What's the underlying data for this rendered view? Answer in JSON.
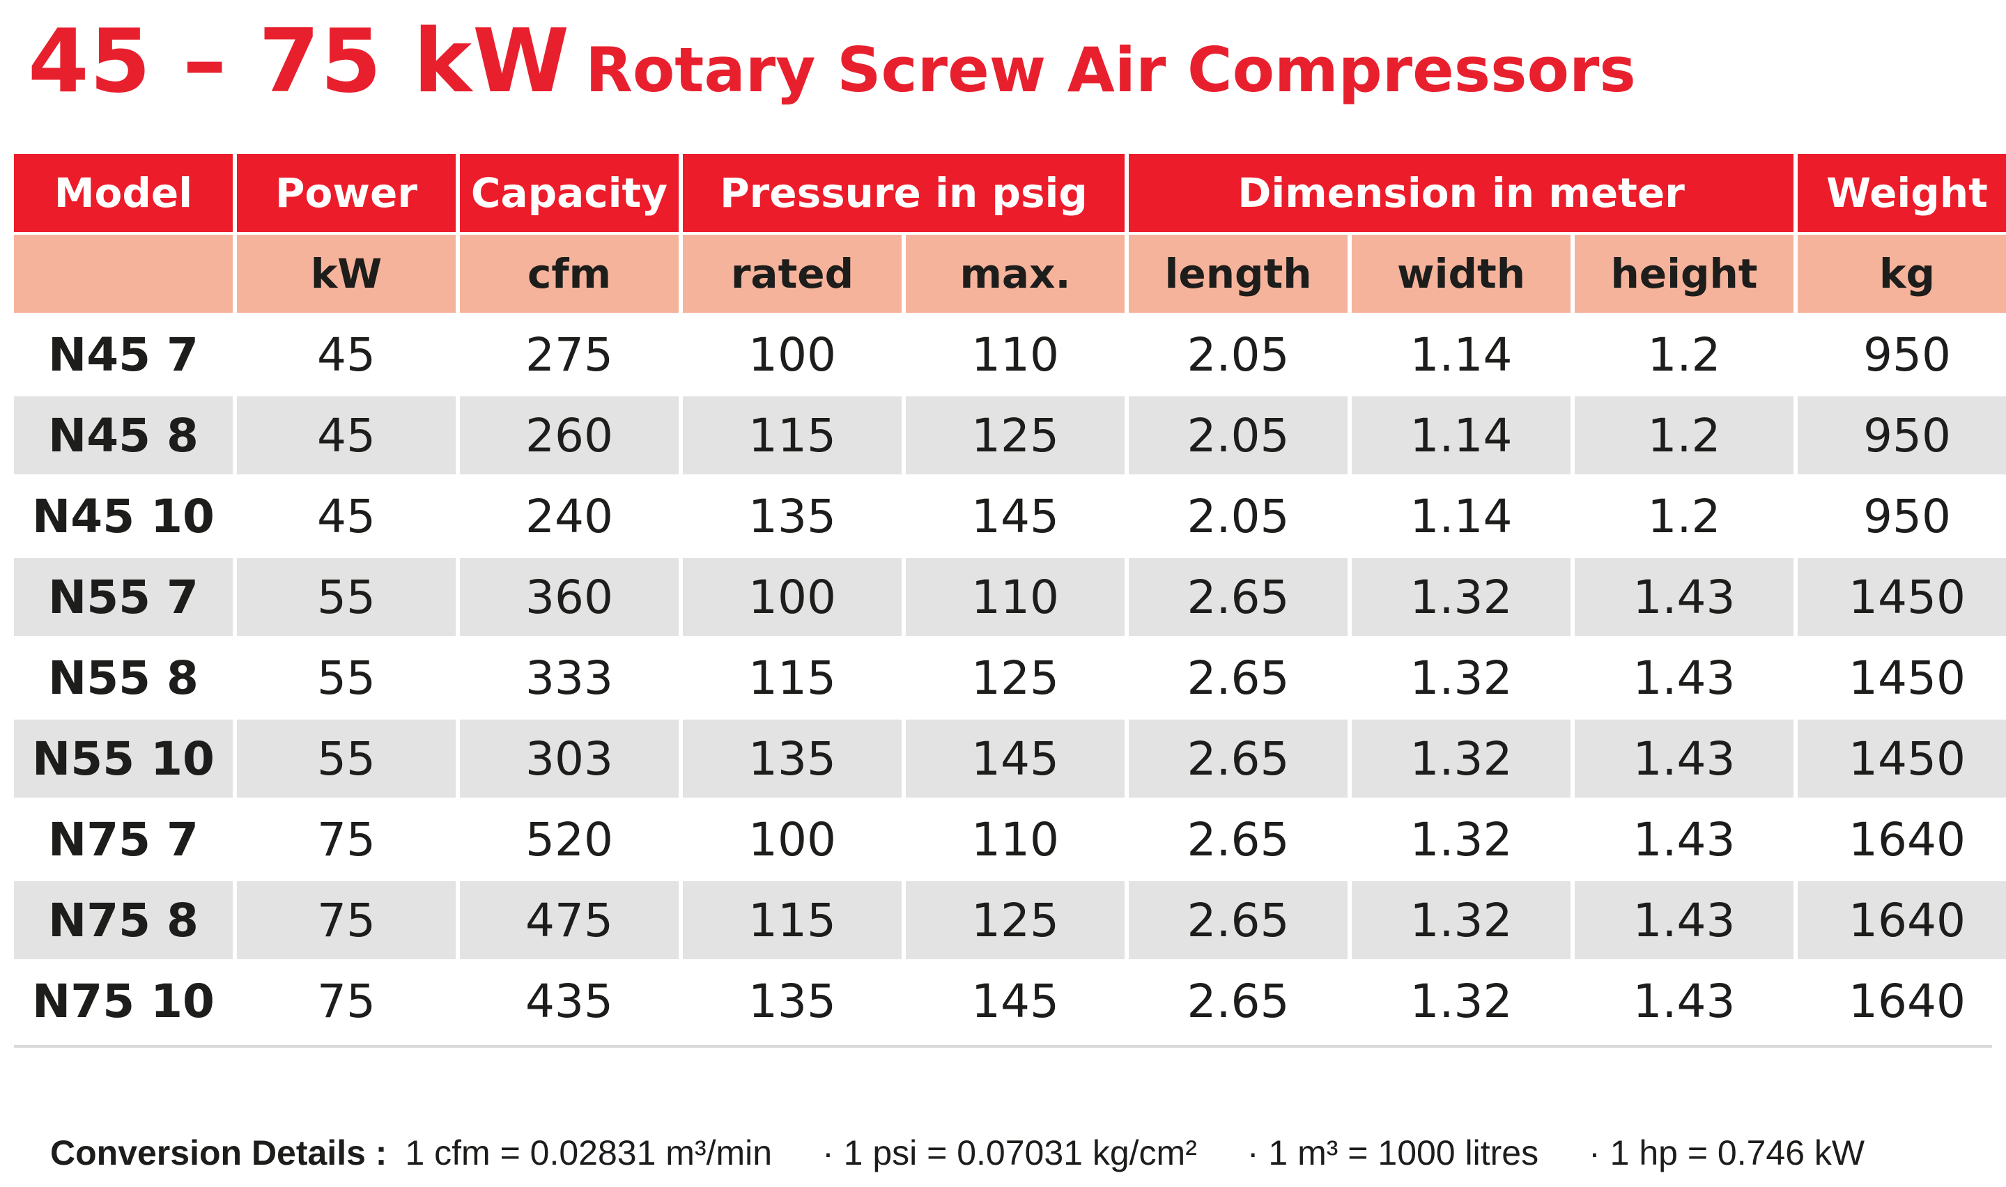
{
  "title": {
    "power_range": "45 – 75 kW",
    "product": "Rotary Screw Air Compressors"
  },
  "colors": {
    "brand_red": "#ec1c2b",
    "subheader_salmon": "#f6b39b",
    "row_shade": "#e3e3e3"
  },
  "table": {
    "headers": {
      "model": "Model",
      "power": "Power",
      "capacity": "Capacity",
      "pressure": "Pressure in psig",
      "dimension": "Dimension in meter",
      "weight": "Weight"
    },
    "subheaders": {
      "model": "",
      "power_unit": "kW",
      "capacity_unit": "cfm",
      "pressure_rated": "rated",
      "pressure_max": "max.",
      "length": "length",
      "width": "width",
      "height": "height",
      "weight_unit": "kg"
    },
    "rows": [
      [
        "N45 7",
        "45",
        "275",
        "100",
        "110",
        "2.05",
        "1.14",
        "1.2",
        "950"
      ],
      [
        "N45 8",
        "45",
        "260",
        "115",
        "125",
        "2.05",
        "1.14",
        "1.2",
        "950"
      ],
      [
        "N45 10",
        "45",
        "240",
        "135",
        "145",
        "2.05",
        "1.14",
        "1.2",
        "950"
      ],
      [
        "N55 7",
        "55",
        "360",
        "100",
        "110",
        "2.65",
        "1.32",
        "1.43",
        "1450"
      ],
      [
        "N55 8",
        "55",
        "333",
        "115",
        "125",
        "2.65",
        "1.32",
        "1.43",
        "1450"
      ],
      [
        "N55 10",
        "55",
        "303",
        "135",
        "145",
        "2.65",
        "1.32",
        "1.43",
        "1450"
      ],
      [
        "N75 7",
        "75",
        "520",
        "100",
        "110",
        "2.65",
        "1.32",
        "1.43",
        "1640"
      ],
      [
        "N75 8",
        "75",
        "475",
        "115",
        "125",
        "2.65",
        "1.32",
        "1.43",
        "1640"
      ],
      [
        "N75 10",
        "75",
        "435",
        "135",
        "145",
        "2.65",
        "1.32",
        "1.43",
        "1640"
      ]
    ]
  },
  "conversion": {
    "label": "Conversion Details :",
    "items": [
      "1 cfm = 0.02831 m³/min",
      "· 1 psi = 0.07031 kg/cm²",
      "· 1 m³ = 1000 litres",
      "· 1 hp = 0.746 kW"
    ]
  }
}
